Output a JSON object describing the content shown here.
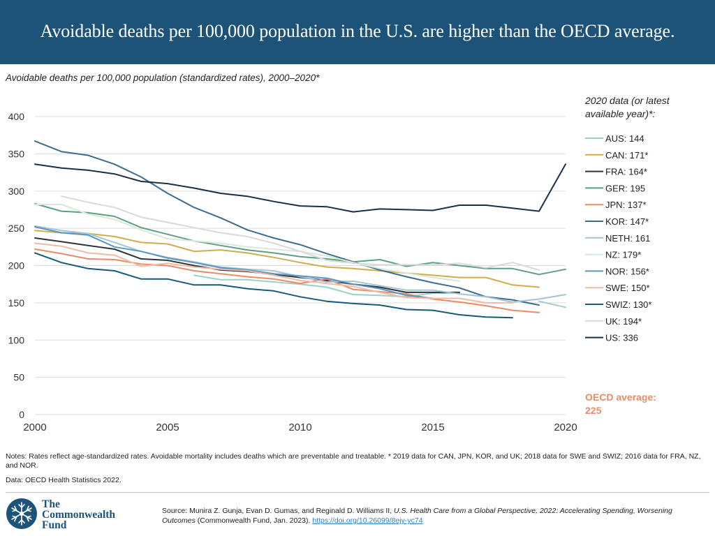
{
  "header": {
    "title": "Avoidable deaths per 100,000 population in the U.S. are higher than the OECD average."
  },
  "subtitle": "Avoidable deaths per 100,000 population (standardized rates), 2000–2020*",
  "chart_data": {
    "type": "line",
    "title": "Avoidable deaths per 100,000 population (standardized rates), 2000–2020*",
    "xlabel": "",
    "ylabel": "",
    "xlim": [
      2000,
      2020
    ],
    "ylim": [
      0,
      400
    ],
    "x_ticks": [
      2000,
      2005,
      2010,
      2015,
      2020
    ],
    "y_ticks": [
      0,
      50,
      100,
      150,
      200,
      250,
      300,
      350,
      400
    ],
    "legend_title": "2020 data (or latest available year)*:",
    "legend_position": "right",
    "annotation": "OECD average: 225",
    "annotation_color": "#e98b67",
    "series": [
      {
        "name": "AUS: 144",
        "color": "#9ecfc8",
        "values": [
          null,
          null,
          null,
          null,
          null,
          null,
          187,
          181,
          181,
          178,
          175,
          171,
          161,
          160,
          158,
          163,
          163,
          null,
          null,
          152,
          144
        ]
      },
      {
        "name": "CAN: 171*",
        "color": "#d0ac4b",
        "values": [
          247,
          244,
          243,
          239,
          231,
          229,
          219,
          221,
          217,
          211,
          204,
          198,
          196,
          193,
          190,
          187,
          184,
          184,
          174,
          171,
          null
        ]
      },
      {
        "name": "FRA: 164*",
        "color": "#2b3540",
        "values": [
          237,
          232,
          227,
          222,
          209,
          207,
          200,
          194,
          192,
          188,
          184,
          180,
          175,
          171,
          164,
          164,
          164,
          null,
          null,
          null,
          null
        ]
      },
      {
        "name": "GER: 195",
        "color": "#5e9e86",
        "values": [
          283,
          273,
          271,
          266,
          251,
          242,
          233,
          227,
          221,
          217,
          212,
          209,
          205,
          208,
          199,
          204,
          200,
          196,
          196,
          188,
          195
        ]
      },
      {
        "name": "JPN: 137*",
        "color": "#e98b67",
        "values": [
          222,
          216,
          209,
          208,
          202,
          200,
          193,
          189,
          185,
          182,
          176,
          182,
          168,
          165,
          162,
          155,
          151,
          146,
          140,
          137,
          null
        ]
      },
      {
        "name": "KOR: 147*",
        "color": "#3e6b8f",
        "values": [
          367,
          353,
          348,
          336,
          319,
          297,
          278,
          264,
          248,
          237,
          228,
          216,
          205,
          194,
          185,
          177,
          170,
          158,
          154,
          147,
          null
        ]
      },
      {
        "name": "NETH: 161",
        "color": "#a4c4d4",
        "values": [
          253,
          247,
          243,
          231,
          219,
          211,
          205,
          198,
          195,
          193,
          185,
          178,
          179,
          173,
          167,
          167,
          162,
          158,
          151,
          155,
          161
        ]
      },
      {
        "name": "NZ: 179*",
        "color": "#d6ead7",
        "values": [
          282,
          282,
          269,
          262,
          248,
          236,
          233,
          230,
          225,
          222,
          219,
          213,
          204,
          196,
          190,
          184,
          179,
          null,
          null,
          null,
          null
        ]
      },
      {
        "name": "NOR: 156*",
        "color": "#5a96c4",
        "values": [
          252,
          244,
          241,
          225,
          219,
          210,
          204,
          197,
          194,
          189,
          186,
          183,
          175,
          169,
          160,
          156,
          156,
          null,
          null,
          null,
          null
        ]
      },
      {
        "name": "SWE: 150*",
        "color": "#f0bba3",
        "values": [
          230,
          226,
          217,
          214,
          199,
          203,
          198,
          195,
          193,
          187,
          180,
          176,
          172,
          164,
          157,
          156,
          156,
          150,
          150,
          null,
          null
        ]
      },
      {
        "name": "SWIZ: 130*",
        "color": "#155a7c",
        "values": [
          217,
          204,
          196,
          193,
          182,
          182,
          174,
          174,
          169,
          166,
          158,
          152,
          149,
          147,
          141,
          140,
          134,
          131,
          130,
          null,
          null
        ]
      },
      {
        "name": "UK: 194*",
        "color": "#d9d9d9",
        "values": [
          null,
          293,
          285,
          278,
          265,
          258,
          251,
          244,
          239,
          230,
          219,
          207,
          203,
          201,
          201,
          201,
          203,
          197,
          204,
          194,
          null
        ]
      },
      {
        "name": "US: 336",
        "color": "#1b2f44",
        "values": [
          336,
          331,
          328,
          323,
          313,
          310,
          304,
          297,
          293,
          286,
          280,
          279,
          272,
          276,
          275,
          274,
          281,
          281,
          277,
          273,
          336
        ]
      }
    ]
  },
  "notes": "Notes: Rates reflect age-standardized rates. Avoidable mortality includes deaths which are preventable and treatable. * 2019 data for CAN, JPN, KOR, and UK; 2018 data for SWE and SWIZ; 2016 data for FRA, NZ, and NOR.",
  "data_source": "Data: OECD Health Statistics 2022.",
  "footer": {
    "logo_line1": "The",
    "logo_line2": "Commonwealth",
    "logo_line3": "Fund",
    "source_prefix": "Source: Munira Z. Gunja, Evan D. Gumas, and Reginald D. Williams II, ",
    "source_title": "U.S. Health Care from a Global Perspective, 2022: Accelerating Spending, Worsening Outcomes",
    "source_suffix": " (Commonwealth Fund, Jan. 2023). ",
    "source_link": "https://doi.org/10.26099/8ejy-yc74"
  },
  "colors": {
    "header_bg": "#1d5379",
    "link": "#2e7fc0",
    "logo": "#1d5379"
  }
}
